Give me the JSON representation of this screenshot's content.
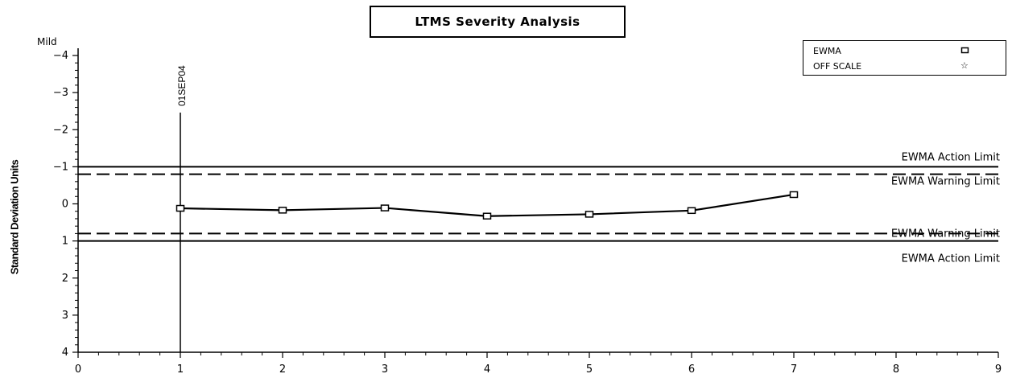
{
  "title": "LTMS Severity Analysis",
  "legend": [
    {
      "label": "EWMA",
      "symbol": "square-marker-icon"
    },
    {
      "label": "OFF SCALE",
      "symbol": "star-marker-icon"
    }
  ],
  "top_axis_note": "Mild",
  "chart_data": {
    "type": "line",
    "title": "LTMS Severity Analysis",
    "ylabel": "Standard Deviation Units",
    "xlabel": "",
    "xlim": [
      0,
      9
    ],
    "ylim": [
      -4,
      4
    ],
    "y_inverted": true,
    "x_ticks": [
      "0",
      "1",
      "2",
      "3",
      "4",
      "5",
      "6",
      "7",
      "8",
      "9"
    ],
    "y_ticks": [
      "-4",
      "-3",
      "-2",
      "-1",
      "0",
      "1",
      "2",
      "3",
      "4"
    ],
    "series": [
      {
        "name": "EWMA",
        "marker": "square",
        "x": [
          1,
          2,
          3,
          4,
          5,
          6,
          7
        ],
        "y": [
          0.12,
          0.17,
          0.11,
          0.33,
          0.28,
          0.18,
          -0.25
        ]
      }
    ],
    "reference_lines": [
      {
        "label": "EWMA Action Limit",
        "y": -1.0,
        "style": "solid"
      },
      {
        "label": "EWMA Warning Limit",
        "y": -0.8,
        "style": "dashed"
      },
      {
        "label": "EWMA Warning Limit",
        "y": 0.8,
        "style": "dashed"
      },
      {
        "label": "EWMA Action Limit",
        "y": 1.0,
        "style": "solid"
      }
    ],
    "vertical_markers": [
      {
        "x": 1,
        "label": "01SEP04"
      }
    ],
    "grid": false,
    "legend_position": "top-right"
  }
}
